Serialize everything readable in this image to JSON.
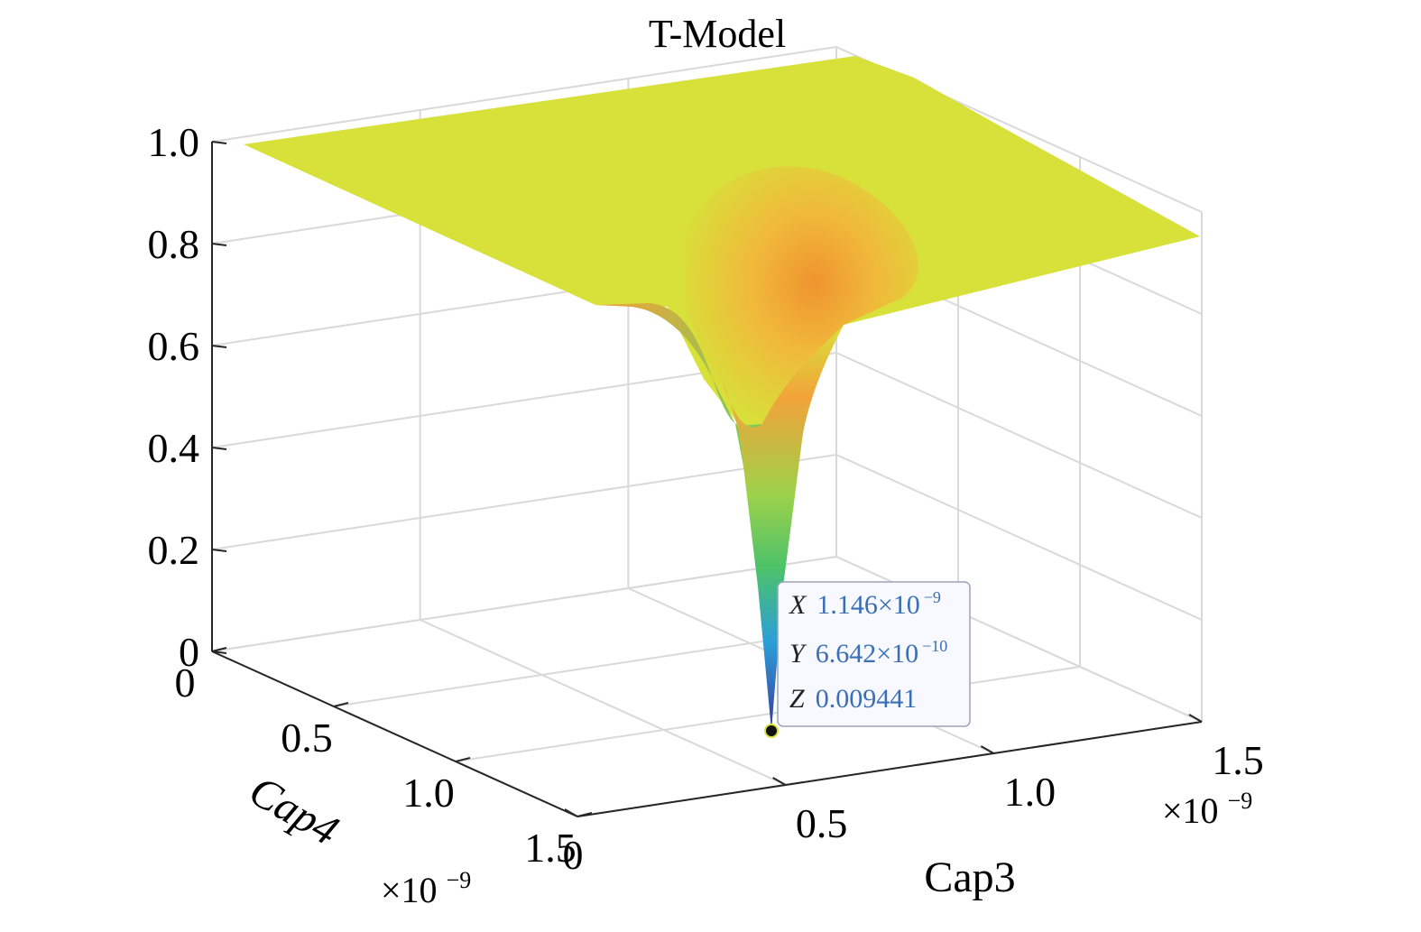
{
  "chart_data": {
    "type": "surface",
    "title": "T-Model",
    "xlabel": "Cap3",
    "ylabel": "Cap4",
    "zlabel": "",
    "x_exponent": "×10",
    "x_exponent_power": "−9",
    "y_exponent": "×10",
    "y_exponent_power": "−9",
    "xlim": [
      0,
      1.5
    ],
    "ylim": [
      0,
      1.5
    ],
    "zlim": [
      0,
      1.0
    ],
    "x_ticks": [
      "0",
      "0.5",
      "1.0",
      "1.5"
    ],
    "x_tick_values": [
      0,
      0.5,
      1.0,
      1.5
    ],
    "y_ticks": [
      "0",
      "0.5",
      "1.0",
      "1.5"
    ],
    "y_tick_values": [
      0,
      0.5,
      1.0,
      1.5
    ],
    "z_ticks": [
      "0",
      "0.2",
      "0.4",
      "0.6",
      "0.8",
      "1.0"
    ],
    "z_tick_values": [
      0,
      0.2,
      0.4,
      0.6,
      0.8,
      1.0
    ],
    "grid": true,
    "colormap": "parula",
    "surface_shape": "flat plateau near 1.0 with a sharp funnel-shaped minimum",
    "plateau_value": 1.0,
    "minimum": {
      "x": 1.146,
      "y": 0.6642,
      "z": 0.009441
    },
    "data_tip": {
      "x_key": "X",
      "x_mantissa": "1.146×10",
      "x_power": "−9",
      "y_key": "Y",
      "y_mantissa": "6.642×10",
      "y_power": "−10",
      "z_key": "Z",
      "z_value": "0.009441"
    },
    "colors": {
      "plateau": "#d8e03a",
      "ridge": "#f2a33a",
      "mid": "#4cc26a",
      "low": "#2c9fd8",
      "bottom": "#3b3a9e",
      "tip_value": "#3a6fb5"
    }
  }
}
